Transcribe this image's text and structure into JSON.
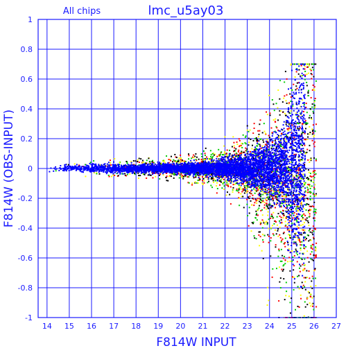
{
  "chart_data": {
    "type": "scatter",
    "title": "lmc_u5ay03",
    "subtitle": "All chips",
    "xlabel": "F814W INPUT",
    "ylabel": "F814W (OBS-INPUT)",
    "xlim": [
      13.6,
      27
    ],
    "ylim": [
      -1,
      1
    ],
    "xticks": [
      14,
      15,
      16,
      17,
      18,
      19,
      20,
      21,
      22,
      23,
      24,
      25,
      26,
      27
    ],
    "yticks": [
      -1,
      -0.8,
      -0.6,
      -0.4,
      -0.2,
      0,
      0.2,
      0.4,
      0.6,
      0.8,
      1
    ],
    "grid": true,
    "point_colors": [
      "#0000ff",
      "#000000",
      "#ff0000",
      "#00cc00",
      "#ffff00"
    ],
    "envelope": [
      {
        "x": 14.0,
        "spread": 0.02
      },
      {
        "x": 15.0,
        "spread": 0.025
      },
      {
        "x": 16.0,
        "spread": 0.03
      },
      {
        "x": 17.0,
        "spread": 0.035
      },
      {
        "x": 18.0,
        "spread": 0.03
      },
      {
        "x": 19.0,
        "spread": 0.035
      },
      {
        "x": 20.0,
        "spread": 0.04
      },
      {
        "x": 21.0,
        "spread": 0.05
      },
      {
        "x": 22.0,
        "spread": 0.08
      },
      {
        "x": 23.0,
        "spread": 0.12
      },
      {
        "x": 24.0,
        "spread": 0.2
      },
      {
        "x": 24.6,
        "spread": 0.3
      },
      {
        "x": 25.0,
        "spread": 0.4
      },
      {
        "x": 25.6,
        "spread": 0.5
      },
      {
        "x": 26.0,
        "spread": 0.6
      }
    ],
    "features": {
      "upper_edge_max": 0.5,
      "lower_tail_min": -1.0,
      "max_x": 26.1
    }
  }
}
